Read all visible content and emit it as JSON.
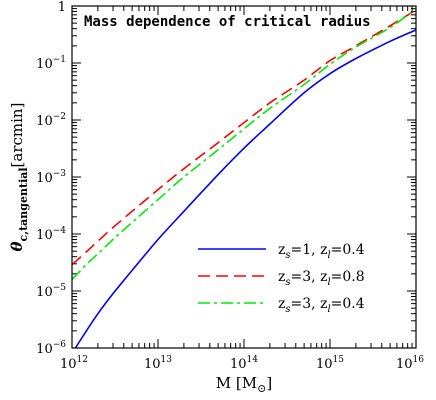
{
  "chart_data": {
    "type": "line",
    "title": "Mass dependence of critical radius",
    "xlabel": {
      "main": "M [M",
      "symbol": "⊙",
      "close": "]"
    },
    "ylabel": {
      "main": "θ",
      "sub": "c,tangential",
      "unit": "[arcmin]"
    },
    "x_scale": "log",
    "y_scale": "log",
    "xlim": [
      1000000000000.0,
      1e+16
    ],
    "ylim": [
      1e-06,
      1
    ],
    "x_ticks": [
      {
        "value": 1000000000000.0,
        "base": "10",
        "exp": "12"
      },
      {
        "value": 10000000000000.0,
        "base": "10",
        "exp": "13"
      },
      {
        "value": 100000000000000.0,
        "base": "10",
        "exp": "14"
      },
      {
        "value": 1000000000000000.0,
        "base": "10",
        "exp": "15"
      },
      {
        "value": 1e+16,
        "base": "10",
        "exp": "16"
      }
    ],
    "y_ticks": [
      {
        "value": 1e-06,
        "base": "10",
        "exp": "−6"
      },
      {
        "value": 1e-05,
        "base": "10",
        "exp": "−5"
      },
      {
        "value": 0.0001,
        "base": "10",
        "exp": "−4"
      },
      {
        "value": 0.001,
        "base": "10",
        "exp": "−3"
      },
      {
        "value": 0.01,
        "base": "10",
        "exp": "−2"
      },
      {
        "value": 0.1,
        "base": "10",
        "exp": "−1"
      },
      {
        "value": 1,
        "base": "1",
        "exp": ""
      }
    ],
    "legend_position": "lower-right",
    "series": [
      {
        "name": "zs=1, zl=0.4",
        "legend": {
          "a": "z",
          "as": "s",
          "b": "=1,  z",
          "bs": "l",
          "c": "=0.4"
        },
        "color": "#0000ff",
        "dash": "solid",
        "x": [
          1000000000000.0,
          1300000000000.0,
          2000000000000.0,
          3000000000000.0,
          5000000000000.0,
          10000000000000.0,
          20000000000000.0,
          50000000000000.0,
          100000000000000.0,
          200000000000000.0,
          500000000000000.0,
          1000000000000000.0,
          2000000000000000.0,
          5000000000000000.0,
          1e+16
        ],
        "y": [
          8e-07,
          1.5e-06,
          4e-06,
          9e-06,
          2.3e-05,
          8e-05,
          0.00025,
          0.0011,
          0.0032,
          0.0085,
          0.03,
          0.065,
          0.12,
          0.24,
          0.38
        ]
      },
      {
        "name": "zs=3, zl=0.8",
        "legend": {
          "a": "z",
          "as": "s",
          "b": "=3,  z",
          "bs": "l",
          "c": "=0.8"
        },
        "color": "#ff0000",
        "dash": "dashed",
        "x": [
          1000000000000.0,
          1500000000000.0,
          2000000000000.0,
          3000000000000.0,
          5000000000000.0,
          10000000000000.0,
          20000000000000.0,
          50000000000000.0,
          100000000000000.0,
          200000000000000.0,
          500000000000000.0,
          1000000000000000.0,
          2000000000000000.0,
          5000000000000000.0,
          1e+16
        ],
        "y": [
          2.9e-05,
          5e-05,
          7.5e-05,
          0.00013,
          0.00025,
          0.0006,
          0.0014,
          0.004,
          0.009,
          0.02,
          0.05,
          0.11,
          0.2,
          0.45,
          0.85
        ]
      },
      {
        "name": "zs=3, zl=0.4",
        "legend": {
          "a": "z",
          "as": "s",
          "b": "=3,  z",
          "bs": "l",
          "c": "=0.4"
        },
        "color": "#00ee00",
        "dash": "dash-dot",
        "x": [
          1000000000000.0,
          1500000000000.0,
          2000000000000.0,
          3000000000000.0,
          5000000000000.0,
          10000000000000.0,
          20000000000000.0,
          50000000000000.0,
          100000000000000.0,
          200000000000000.0,
          500000000000000.0,
          1000000000000000.0,
          2000000000000000.0,
          5000000000000000.0,
          1e+16
        ],
        "y": [
          1.6e-05,
          3e-05,
          4.5e-05,
          8e-05,
          0.00016,
          0.0004,
          0.001,
          0.003,
          0.007,
          0.016,
          0.042,
          0.095,
          0.19,
          0.42,
          0.9
        ]
      }
    ]
  }
}
